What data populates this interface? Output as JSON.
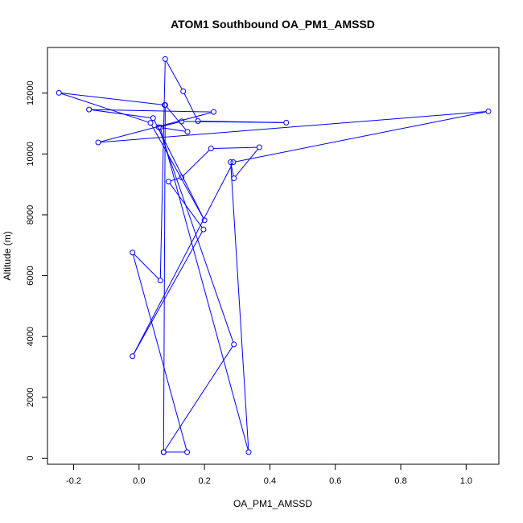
{
  "chart_data": {
    "type": "line",
    "title": "ATOM1 Southbound OA_PM1_AMSSD",
    "xlabel": "OA_PM1_AMSSD",
    "ylabel": "Altitude (m)",
    "xlim": [
      -0.28,
      1.1
    ],
    "ylim": [
      -200,
      13500
    ],
    "x_ticks": [
      -0.2,
      0.0,
      0.2,
      0.4,
      0.6,
      0.8,
      1.0
    ],
    "x_tick_labels": [
      "-0.2",
      "0.0",
      "0.2",
      "0.4",
      "0.6",
      "0.8",
      "1.0"
    ],
    "y_ticks": [
      0,
      2000,
      4000,
      6000,
      8000,
      10000,
      12000
    ],
    "y_tick_labels": [
      "0",
      "2000",
      "4000",
      "6000",
      "8000",
      "10000",
      "12000"
    ],
    "grid": false,
    "series": [
      {
        "color": "#0000ff",
        "marker": "open-circle",
        "x": [
          0.075,
          0.147,
          -0.02,
          0.065,
          0.08,
          0.135,
          0.18,
          0.45,
          0.13,
          0.06,
          0.29,
          0.075,
          0.08,
          0.148,
          0.065,
          0.335,
          0.28,
          0.29,
          0.368,
          0.22,
          0.13,
          0.09,
          0.197,
          -0.02,
          0.288,
          1.068,
          -0.125,
          0.228,
          -0.153,
          0.043,
          0.2,
          0.035,
          -0.245,
          0.078
        ],
        "y": [
          200,
          200,
          6760,
          5840,
          13120,
          12060,
          11080,
          11030,
          11070,
          10880,
          3740,
          200,
          11610,
          10730,
          10870,
          200,
          9730,
          9200,
          10220,
          10180,
          9230,
          9090,
          7520,
          3350,
          9730,
          11400,
          10380,
          11380,
          11460,
          11180,
          7820,
          11020,
          12010,
          11610
        ]
      }
    ]
  }
}
